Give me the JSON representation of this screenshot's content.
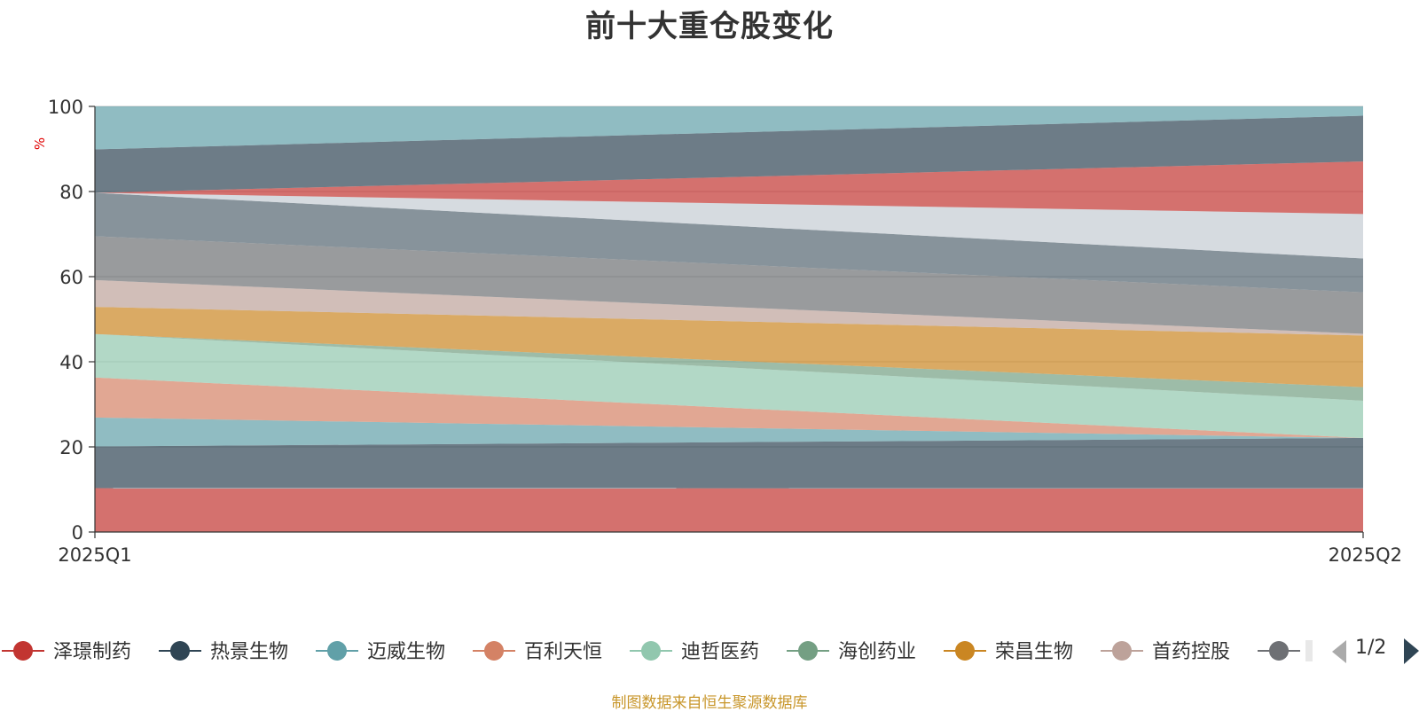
{
  "chart_data": {
    "type": "area",
    "stacked": true,
    "stack_mode": "percent",
    "title": "前十大重仓股变化",
    "ylabel": "%",
    "categories": [
      "2025Q1",
      "2025Q2"
    ],
    "ylim": [
      0,
      100
    ],
    "yticks": [
      0,
      20,
      40,
      60,
      80,
      100
    ],
    "grid": true,
    "series": [
      {
        "name": "泽璟制药",
        "color": "#c23531",
        "values": [
          10.3,
          10.3
        ]
      },
      {
        "name": "热景生物",
        "color": "#2f4554",
        "values": [
          9.8,
          11.9
        ]
      },
      {
        "name": "迈威生物",
        "color": "#61a0a8",
        "values": [
          6.8,
          0
        ]
      },
      {
        "name": "百利天恒",
        "color": "#d48265",
        "values": [
          9.4,
          0
        ]
      },
      {
        "name": "迪哲医药",
        "color": "#91c7ae",
        "values": [
          10.2,
          8.8
        ]
      },
      {
        "name": "海创药业",
        "color": "#749f83",
        "values": [
          0,
          3.2
        ]
      },
      {
        "name": "荣昌生物",
        "color": "#ca8622",
        "values": [
          6.4,
          12.2
        ]
      },
      {
        "name": "首药控股",
        "color": "#bda29a",
        "values": [
          6.3,
          0.4
        ]
      },
      {
        "name": "",
        "color": "#6e7074",
        "values": [
          10.3,
          9.8
        ]
      },
      {
        "name": "",
        "color": "#546570",
        "values": [
          10.2,
          8.0
        ]
      },
      {
        "name": "",
        "color": "#c4ccd3",
        "values": [
          0,
          10.5
        ]
      },
      {
        "name": "",
        "color": "#c23531",
        "values": [
          0,
          12.4
        ]
      },
      {
        "name": "",
        "color": "#2f4554",
        "values": [
          10.2,
          10.8
        ]
      },
      {
        "name": "",
        "color": "#61a0a8",
        "values": [
          10.1,
          2.2
        ]
      }
    ]
  },
  "legend": {
    "visible_items": [
      {
        "name": "泽璟制药",
        "color": "#c23531"
      },
      {
        "name": "热景生物",
        "color": "#2f4554"
      },
      {
        "name": "迈威生物",
        "color": "#61a0a8"
      },
      {
        "name": "百利天恒",
        "color": "#d48265"
      },
      {
        "name": "迪哲医药",
        "color": "#91c7ae"
      },
      {
        "name": "海创药业",
        "color": "#749f83"
      },
      {
        "name": "荣昌生物",
        "color": "#ca8622"
      },
      {
        "name": "首药控股",
        "color": "#bda29a"
      }
    ],
    "cut_off_item": {
      "name": "",
      "color": "#6e7074"
    },
    "pager": "1/2"
  },
  "source_note": "制图数据来自恒生聚源数据库"
}
